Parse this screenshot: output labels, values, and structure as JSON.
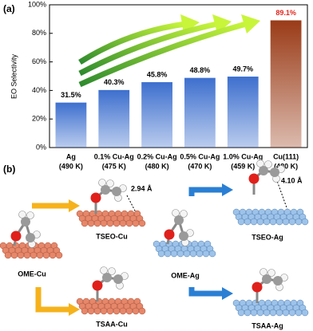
{
  "panel_labels": [
    "(a)",
    "(b)"
  ],
  "chart_data": {
    "type": "bar",
    "y_label": "EO Selectivity",
    "categories": [
      "Ag",
      "0.1% Cu-Ag",
      "0.2% Cu-Ag",
      "0.5% Cu-Ag",
      "1.0% Cu-Ag",
      "Cu(111)"
    ],
    "temperatures": [
      "(490 K)",
      "(475 K)",
      "(480 K)",
      "(470 K)",
      "(459 K)",
      "(480 K)"
    ],
    "values": [
      31.5,
      40.3,
      45.8,
      48.8,
      49.7,
      89.1
    ],
    "value_labels": [
      "31.5%",
      "40.3%",
      "45.8%",
      "48.8%",
      "49.7%",
      "89.1%"
    ],
    "colors": [
      "#3d6fce",
      "#3d6fce",
      "#3d6fce",
      "#3d6fce",
      "#3d6fce",
      "#9a3b17"
    ],
    "label_colors": [
      "#000000",
      "#000000",
      "#000000",
      "#000000",
      "#000000",
      "#e3261d"
    ],
    "ylim": [
      0,
      100
    ],
    "yticks": [
      {
        "value": 0,
        "label": "0%"
      },
      {
        "value": 20,
        "label": "20%"
      },
      {
        "value": 40,
        "label": "40%"
      },
      {
        "value": 60,
        "label": "60%"
      },
      {
        "value": 80,
        "label": "80%"
      },
      {
        "value": 100,
        "label": "100%"
      }
    ]
  },
  "panel_b": {
    "structures": [
      "OME-Cu",
      "TSEO-Cu",
      "TSAA-Cu",
      "OME-Ag",
      "TSEO-Ag",
      "TSAA-Ag"
    ],
    "distances": [
      "2.94 Å",
      "4.10 Å"
    ]
  }
}
